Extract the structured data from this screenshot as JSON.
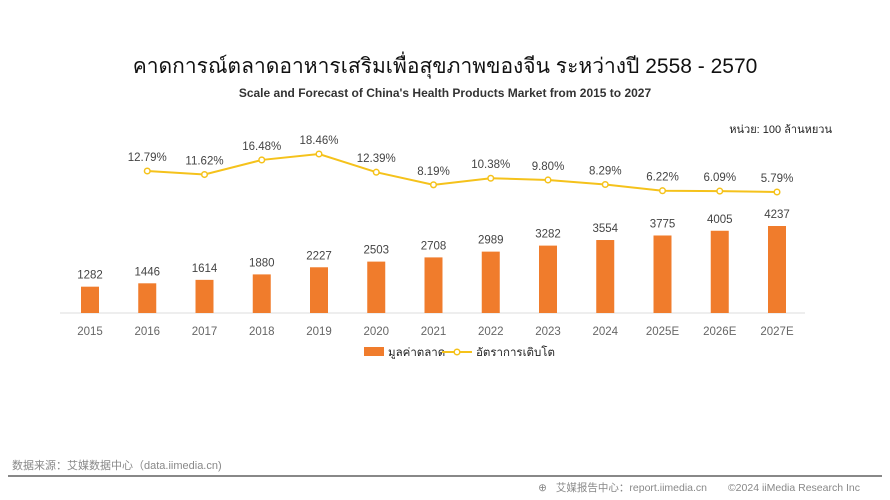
{
  "title": "คาดการณ์ตลาดอาหารเสริมเพื่อสุขภาพของจีน ระหว่างปี 2558 - 2570",
  "subtitle": "Scale and Forecast of China's Health Products Market from 2015 to 2027",
  "unit": "หน่วย: 100 ล้านหยวน",
  "source": "数据来源：艾媒数据中心（data.iimedia.cn)",
  "footer": {
    "report": "艾媒报告中心：report.iimedia.cn",
    "copyright": "©2024  iiMedia Research Inc"
  },
  "chart_data": {
    "type": "bar",
    "categories": [
      "2015",
      "2016",
      "2017",
      "2018",
      "2019",
      "2020",
      "2021",
      "2022",
      "2023",
      "2024",
      "2025E",
      "2026E",
      "2027E"
    ],
    "series": [
      {
        "name": "มูลค่าตลาด",
        "type": "bar",
        "color": "#f07c2c",
        "values": [
          1282,
          1446,
          1614,
          1880,
          2227,
          2503,
          2708,
          2989,
          3282,
          3554,
          3775,
          4005,
          4237
        ]
      },
      {
        "name": "อัตราการเติบโต",
        "type": "line",
        "color": "#f5c21b",
        "values": [
          null,
          12.79,
          11.62,
          16.48,
          18.46,
          12.39,
          8.19,
          10.38,
          9.8,
          8.29,
          6.22,
          6.09,
          5.79
        ],
        "labels": [
          "",
          "12.79%",
          "11.62%",
          "16.48%",
          "18.46%",
          "12.39%",
          "8.19%",
          "10.38%",
          "9.80%",
          "8.29%",
          "6.22%",
          "6.09%",
          "5.79%"
        ]
      }
    ],
    "legend": "bottom-center",
    "grid": false
  }
}
